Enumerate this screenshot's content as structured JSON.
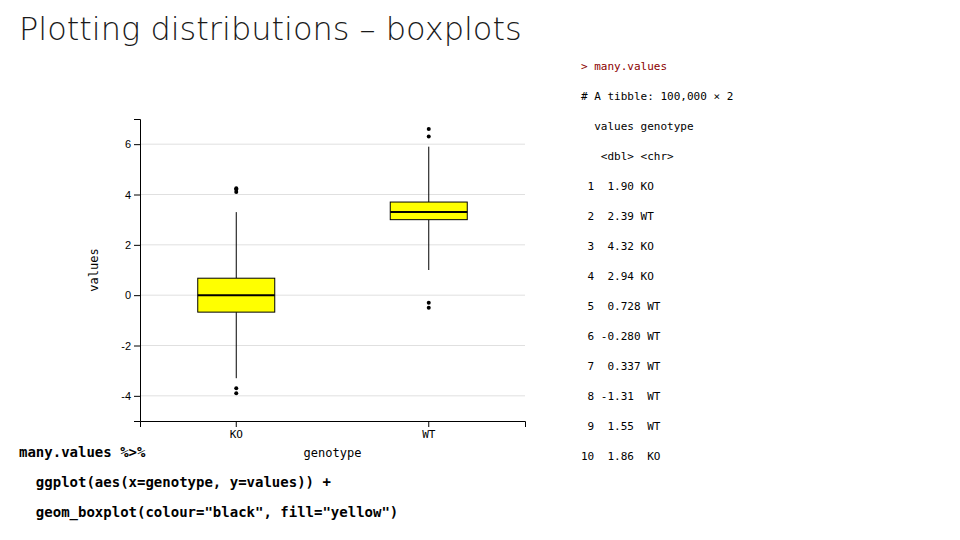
{
  "chart_data": {
    "type": "box",
    "title": "Plotting distributions – boxplots",
    "x_label": "genotype",
    "y_label": "values",
    "categories": [
      "KO",
      "WT"
    ],
    "color": "#FFFF00",
    "boxes": [
      {
        "q1": -0.674,
        "median": 0.0,
        "q3": 0.674,
        "whisker_low": -3.3,
        "whisker_high": 3.3,
        "outliers_low": [
          -3.9,
          -3.7
        ],
        "outliers_high": [
          4.1,
          4.2,
          4.25
        ]
      },
      {
        "q1": 3.0,
        "median": 3.3,
        "q3": 3.7,
        "whisker_low": 1.0,
        "whisker_high": 5.9,
        "outliers_low": [
          -0.5,
          -0.3
        ],
        "outliers_high": [
          6.3,
          6.6
        ]
      }
    ],
    "ylim": [
      -5.0,
      7.0
    ],
    "yticks": [
      -4,
      -2,
      0,
      2,
      4,
      6
    ],
    "grid": true,
    "console": [
      {
        "text": "> many.values",
        "color": "#8B0000"
      },
      {
        "text": "# A tibble: 100,000 × 2",
        "color": "#000000"
      },
      {
        "text": "  values genotype",
        "color": "#000000"
      },
      {
        "text": "   <dbl> <chr>   ",
        "color": "#000000"
      },
      {
        "text": " 1  1.90 KO      ",
        "color": "#000000"
      },
      {
        "text": " 2  2.39 WT      ",
        "color": "#000000"
      },
      {
        "text": " 3  4.32 KO      ",
        "color": "#000000"
      },
      {
        "text": " 4  2.94 KO      ",
        "color": "#000000"
      },
      {
        "text": " 5  0.728 WT     ",
        "color": "#000000"
      },
      {
        "text": " 6 -0.280 WT     ",
        "color": "#000000"
      },
      {
        "text": " 7  0.337 WT     ",
        "color": "#000000"
      },
      {
        "text": " 8 -1.31  WT     ",
        "color": "#000000"
      },
      {
        "text": " 9  1.55  WT     ",
        "color": "#000000"
      },
      {
        "text": "10  1.86  KO     ",
        "color": "#000000"
      }
    ],
    "code": [
      "many.values %>%",
      "  ggplot(aes(x=genotype, y=values)) +",
      "  geom_boxplot(colour=\"black\", fill=\"yellow\")"
    ]
  }
}
